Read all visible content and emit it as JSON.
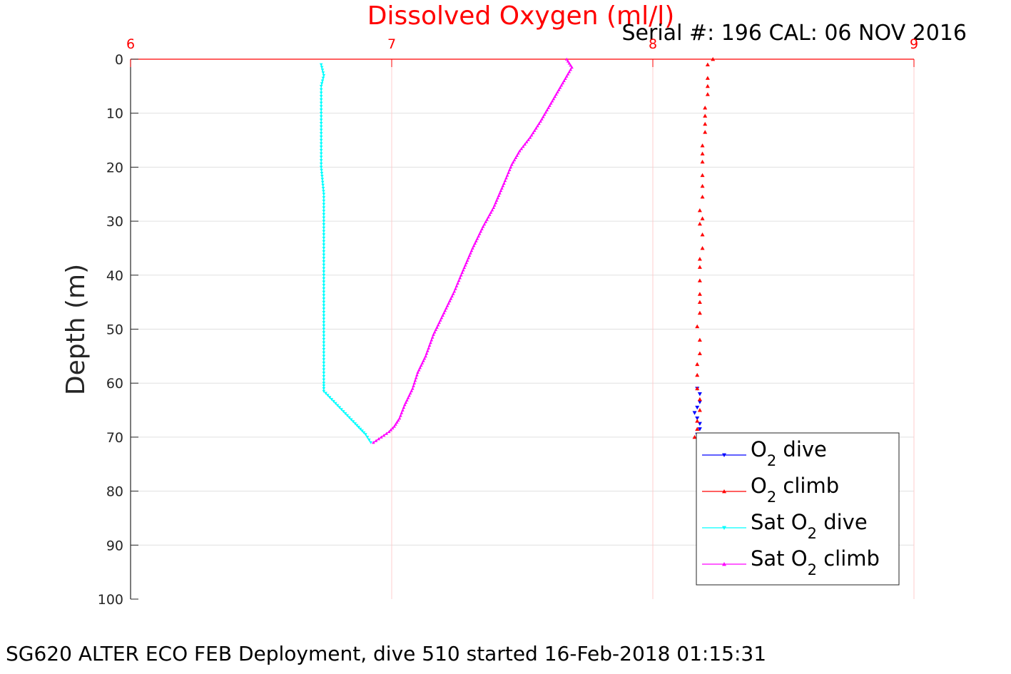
{
  "colors": {
    "o2_dive": "#0000ff",
    "o2_climb": "#ff0000",
    "sat_dive": "#00ffff",
    "sat_climb": "#ff00ff",
    "x_axis": "#ff0000",
    "grid": "#e0e0e0",
    "x_grid": "#ffcccc"
  },
  "chart_data": {
    "type": "line",
    "title": "Dissolved Oxygen (ml/l)",
    "subtitle": "Serial #: 196  CAL: 06 NOV 2016",
    "footer": "SG620 ALTER ECO FEB Deployment, dive 510 started 16-Feb-2018 01:15:31",
    "ylabel": "Depth (m)",
    "xlabel": "",
    "xlim": [
      6,
      9
    ],
    "ylim": [
      0,
      100
    ],
    "y_reversed": true,
    "x_axis_position": "top",
    "xticks": [
      6,
      7,
      8,
      9
    ],
    "yticks": [
      0,
      10,
      20,
      30,
      40,
      50,
      60,
      70,
      80,
      90,
      100
    ],
    "grid": true,
    "legend_position": "bottom-right",
    "series": [
      {
        "key": "o2_dive",
        "marker": "triangle-down",
        "legend": {
          "pre": "O",
          "sub": "2",
          "post": " dive"
        },
        "points": [
          [
            8.17,
            61.0
          ],
          [
            8.18,
            62.0
          ],
          [
            8.18,
            63.5
          ],
          [
            8.17,
            64.5
          ],
          [
            8.16,
            65.5
          ],
          [
            8.17,
            66.5
          ],
          [
            8.18,
            67.5
          ],
          [
            8.18,
            68.5
          ],
          [
            8.17,
            69.5
          ]
        ]
      },
      {
        "key": "o2_climb",
        "marker": "triangle-up",
        "legend": {
          "pre": "O",
          "sub": "2",
          "post": " climb"
        },
        "points": [
          [
            8.16,
            70.0
          ],
          [
            8.17,
            68.5
          ],
          [
            8.17,
            67.0
          ],
          [
            8.18,
            65.0
          ],
          [
            8.18,
            63.0
          ],
          [
            8.17,
            61.0
          ],
          [
            8.17,
            58.5
          ],
          [
            8.17,
            56.5
          ],
          [
            8.18,
            54.5
          ],
          [
            8.18,
            52.0
          ],
          [
            8.17,
            49.5
          ],
          [
            8.18,
            47.0
          ],
          [
            8.18,
            45.0
          ],
          [
            8.18,
            43.5
          ],
          [
            8.18,
            41.0
          ],
          [
            8.18,
            38.5
          ],
          [
            8.18,
            37.0
          ],
          [
            8.19,
            35.0
          ],
          [
            8.19,
            32.5
          ],
          [
            8.18,
            30.5
          ],
          [
            8.19,
            29.5
          ],
          [
            8.18,
            28.0
          ],
          [
            8.19,
            25.5
          ],
          [
            8.19,
            23.5
          ],
          [
            8.19,
            21.5
          ],
          [
            8.19,
            19.0
          ],
          [
            8.19,
            17.5
          ],
          [
            8.19,
            16.0
          ],
          [
            8.2,
            13.5
          ],
          [
            8.2,
            12.0
          ],
          [
            8.2,
            10.5
          ],
          [
            8.2,
            9.0
          ],
          [
            8.21,
            6.5
          ],
          [
            8.21,
            5.0
          ],
          [
            8.21,
            3.5
          ],
          [
            8.21,
            1.0
          ],
          [
            8.23,
            0.0
          ]
        ]
      },
      {
        "key": "sat_dive",
        "marker": "triangle-down",
        "legend": {
          "pre": "Sat O",
          "sub": "2",
          "post": " dive"
        },
        "points": [
          [
            6.73,
            1.0
          ],
          [
            6.74,
            3.0
          ],
          [
            6.73,
            5.0
          ],
          [
            6.73,
            10.0
          ],
          [
            6.73,
            15.0
          ],
          [
            6.73,
            20.0
          ],
          [
            6.74,
            25.0
          ],
          [
            6.74,
            30.0
          ],
          [
            6.74,
            35.0
          ],
          [
            6.74,
            40.0
          ],
          [
            6.74,
            45.0
          ],
          [
            6.74,
            50.0
          ],
          [
            6.74,
            55.0
          ],
          [
            6.74,
            60.0
          ],
          [
            6.74,
            61.5
          ],
          [
            6.77,
            63.0
          ],
          [
            6.8,
            64.5
          ],
          [
            6.83,
            66.0
          ],
          [
            6.86,
            67.5
          ],
          [
            6.88,
            68.5
          ],
          [
            6.9,
            69.5
          ],
          [
            6.92,
            71.0
          ]
        ]
      },
      {
        "key": "sat_climb",
        "marker": "triangle-up",
        "legend": {
          "pre": "Sat O",
          "sub": "2",
          "post": " climb"
        },
        "points": [
          [
            6.93,
            71.0
          ],
          [
            6.96,
            70.0
          ],
          [
            6.99,
            69.0
          ],
          [
            7.01,
            68.0
          ],
          [
            7.03,
            66.5
          ],
          [
            7.05,
            64.0
          ],
          [
            7.08,
            61.0
          ],
          [
            7.1,
            58.0
          ],
          [
            7.13,
            55.0
          ],
          [
            7.16,
            51.0
          ],
          [
            7.2,
            47.0
          ],
          [
            7.24,
            43.0
          ],
          [
            7.27,
            39.5
          ],
          [
            7.31,
            35.0
          ],
          [
            7.35,
            31.0
          ],
          [
            7.39,
            27.5
          ],
          [
            7.43,
            23.0
          ],
          [
            7.46,
            19.5
          ],
          [
            7.49,
            17.0
          ],
          [
            7.53,
            14.5
          ],
          [
            7.57,
            11.5
          ],
          [
            7.6,
            9.0
          ],
          [
            7.63,
            6.5
          ],
          [
            7.66,
            4.0
          ],
          [
            7.69,
            1.5
          ],
          [
            7.67,
            0.0
          ]
        ]
      }
    ]
  }
}
